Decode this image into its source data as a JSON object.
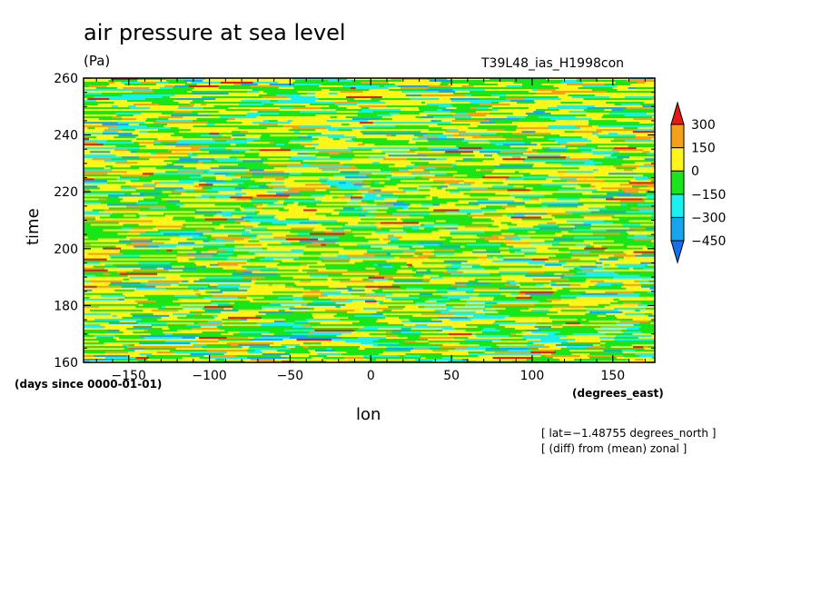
{
  "chart_data": {
    "type": "heatmap",
    "title": "air pressure at sea level",
    "units": "(Pa)",
    "run_id": "T39L48_ias_H1998con",
    "xlabel": "lon",
    "x_units": "(degrees_east)",
    "ylabel": "time",
    "y_units": "(days since 0000-01-01)",
    "notes": [
      "[ lat=−1.48755 degrees_north ]",
      "[ (diff) from (mean) zonal ]"
    ],
    "xlim": [
      -178,
      176
    ],
    "ylim": [
      160,
      260
    ],
    "x_ticks": [
      -150,
      -100,
      -50,
      0,
      50,
      100,
      150
    ],
    "x_tick_labels": [
      "−150",
      "−100",
      "−50",
      "0",
      "50",
      "100",
      "150"
    ],
    "y_ticks": [
      160,
      180,
      200,
      220,
      240,
      260
    ],
    "y_tick_labels": [
      "160",
      "180",
      "200",
      "220",
      "240",
      "260"
    ],
    "colorbar": {
      "levels": [
        -450,
        -300,
        -150,
        0,
        150,
        300
      ],
      "level_labels": [
        "−450",
        "−300",
        "−150",
        "0",
        "150",
        "300"
      ],
      "colors": [
        "#1a6fe8",
        "#19a4f0",
        "#19f0f0",
        "#19e619",
        "#fff519",
        "#f5a019",
        "#e61919"
      ],
      "extend": "both"
    },
    "grid": false
  }
}
